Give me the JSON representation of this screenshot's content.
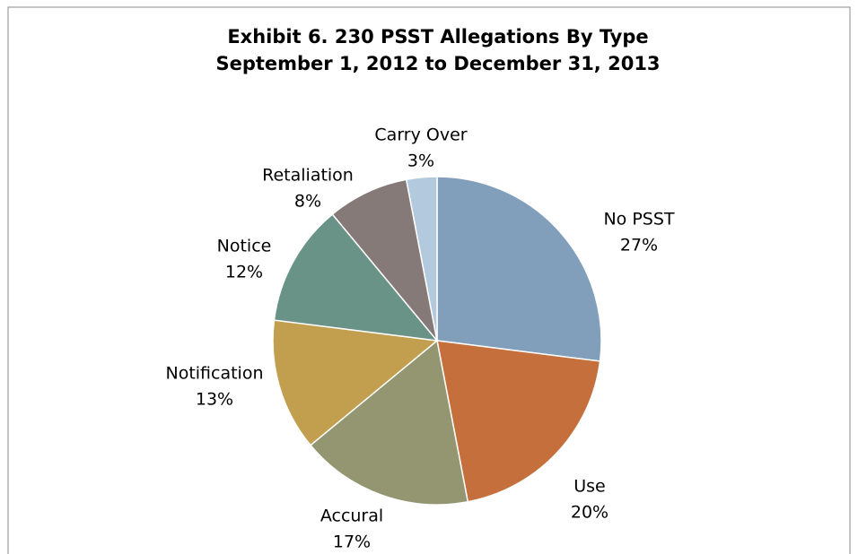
{
  "chart_data": {
    "type": "pie",
    "title": "Exhibit 6. 230 PSST Allegations By Type",
    "subtitle": "September 1, 2012 to December 31, 2013",
    "categories": [
      "No PSST",
      "Use",
      "Accural",
      "Notification",
      "Notice",
      "Retaliation",
      "Carry Over"
    ],
    "values": [
      27,
      20,
      17,
      13,
      12,
      8,
      3
    ],
    "value_labels": [
      "27%",
      "20%",
      "17%",
      "13%",
      "12%",
      "8%",
      "3%"
    ],
    "colors": [
      "#819fba",
      "#c5703c",
      "#939671",
      "#c29e4f",
      "#6a9387",
      "#857a78",
      "#b3c9de"
    ]
  }
}
